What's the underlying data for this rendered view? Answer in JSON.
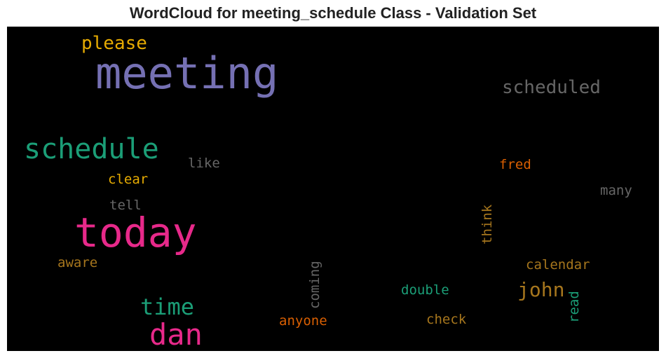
{
  "title": "WordCloud for meeting_schedule Class - Validation Set",
  "words": [
    {
      "text": "meeting",
      "color": "#7570b3"
    },
    {
      "text": "please",
      "color": "#e6ab02"
    },
    {
      "text": "scheduled",
      "color": "#666666"
    },
    {
      "text": "schedule",
      "color": "#1b9e77"
    },
    {
      "text": "like",
      "color": "#666666"
    },
    {
      "text": "clear",
      "color": "#e6ab02"
    },
    {
      "text": "fred",
      "color": "#d95f02"
    },
    {
      "text": "many",
      "color": "#666666"
    },
    {
      "text": "tell",
      "color": "#666666"
    },
    {
      "text": "today",
      "color": "#e7298a"
    },
    {
      "text": "think",
      "color": "#a6761d"
    },
    {
      "text": "aware",
      "color": "#a6761d"
    },
    {
      "text": "coming",
      "color": "#666666"
    },
    {
      "text": "calendar",
      "color": "#a6761d"
    },
    {
      "text": "double",
      "color": "#1b9e77"
    },
    {
      "text": "john",
      "color": "#a6761d"
    },
    {
      "text": "read",
      "color": "#1b9e77"
    },
    {
      "text": "time",
      "color": "#1b9e77"
    },
    {
      "text": "anyone",
      "color": "#d95f02"
    },
    {
      "text": "check",
      "color": "#a6761d"
    },
    {
      "text": "dan",
      "color": "#e7298a"
    }
  ]
}
